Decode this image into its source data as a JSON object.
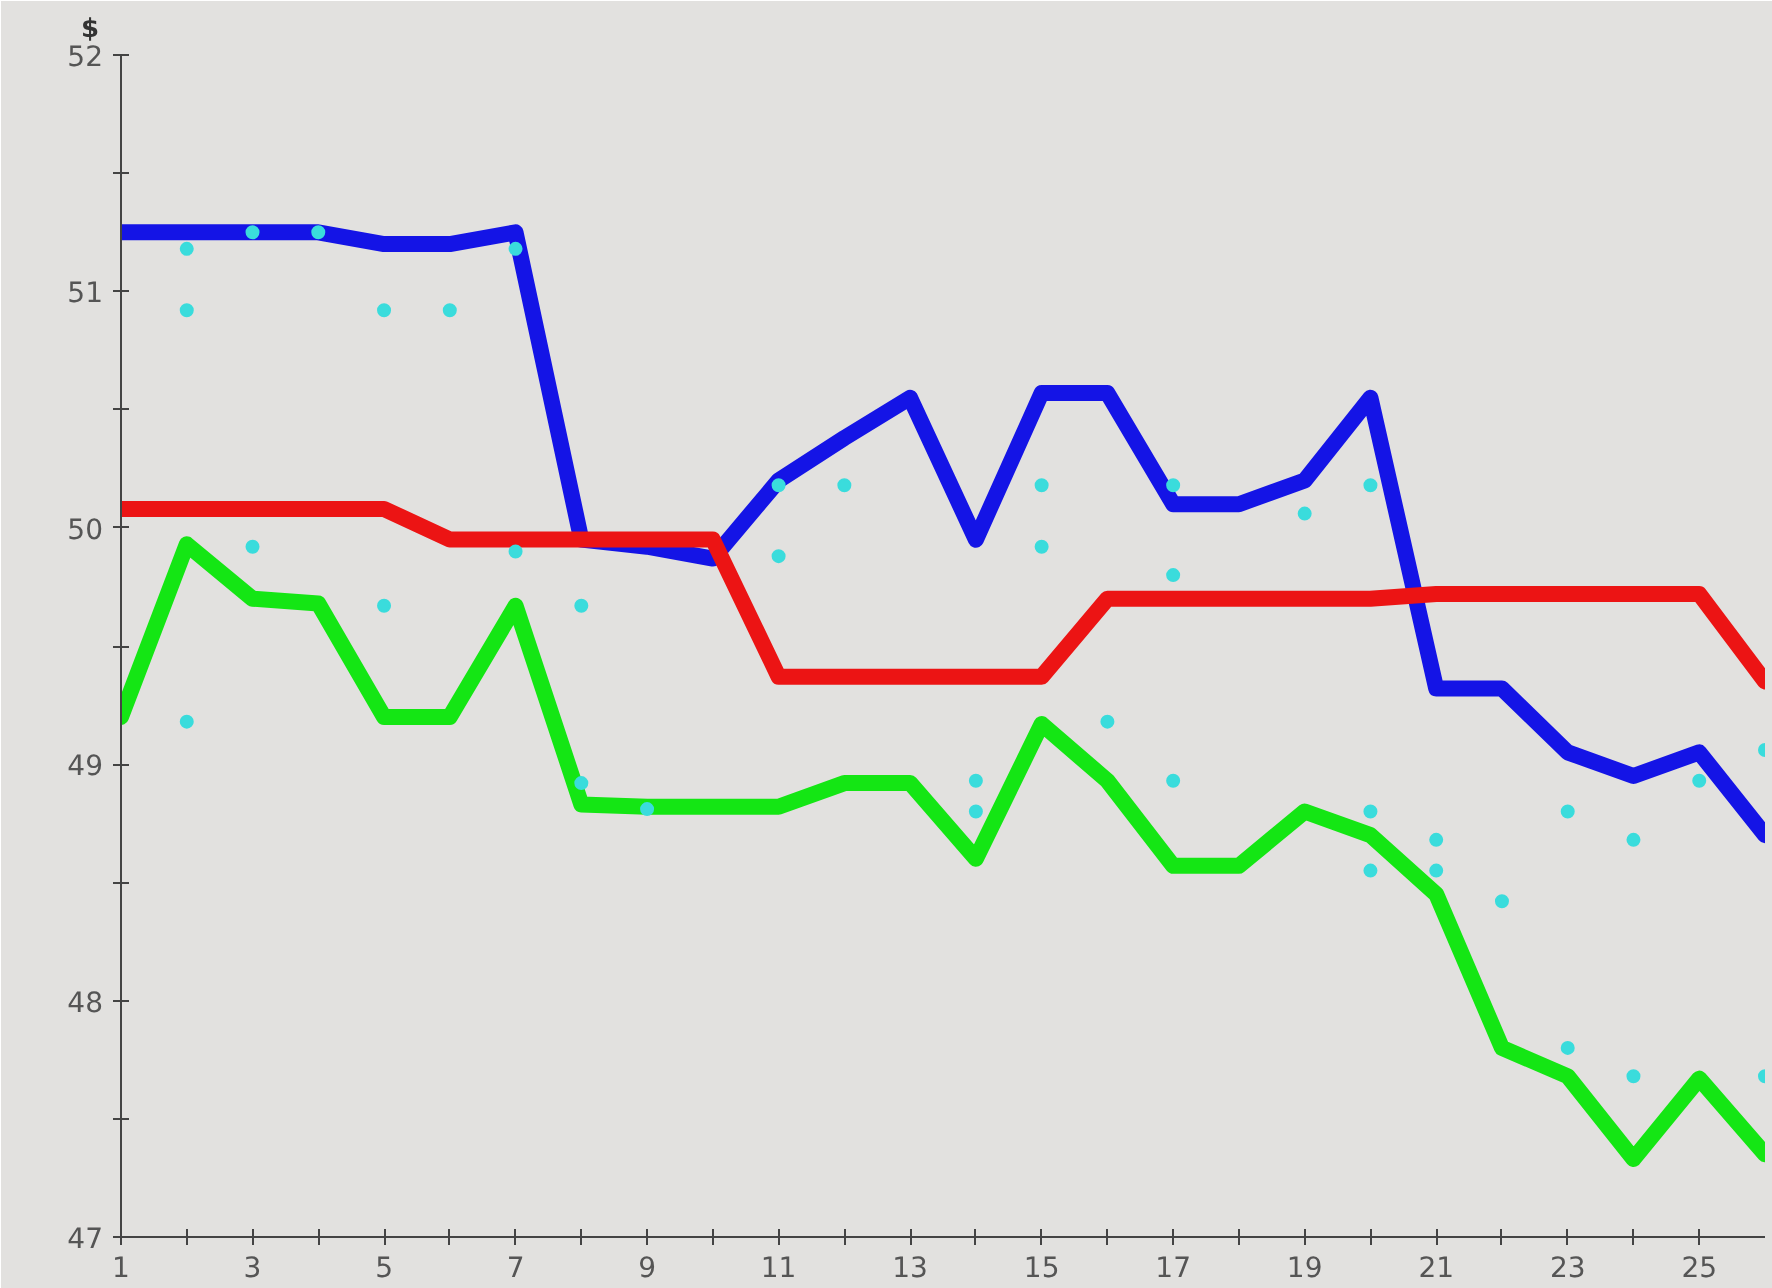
{
  "chart_data": {
    "type": "line",
    "ylabel": "$",
    "x": [
      1,
      2,
      3,
      4,
      5,
      6,
      7,
      8,
      9,
      10,
      11,
      12,
      13,
      14,
      15,
      16,
      17,
      18,
      19,
      20,
      21,
      22,
      23,
      24,
      25,
      26
    ],
    "series": [
      {
        "color": "#1414e6",
        "values": [
          51.25,
          51.25,
          51.25,
          51.25,
          51.2,
          51.2,
          51.25,
          49.95,
          49.92,
          49.87,
          50.2,
          50.38,
          50.55,
          49.95,
          50.57,
          50.57,
          50.1,
          50.1,
          50.2,
          50.55,
          49.32,
          49.32,
          49.05,
          48.95,
          49.05,
          48.7
        ]
      },
      {
        "color": "#ec1414",
        "values": [
          50.08,
          50.08,
          50.08,
          50.08,
          50.08,
          49.95,
          49.95,
          49.95,
          49.95,
          49.95,
          49.37,
          49.37,
          49.37,
          49.37,
          49.37,
          49.7,
          49.7,
          49.7,
          49.7,
          49.7,
          49.72,
          49.72,
          49.72,
          49.72,
          49.72,
          49.35
        ]
      },
      {
        "color": "#14e614",
        "values": [
          49.2,
          49.93,
          49.7,
          49.68,
          49.2,
          49.2,
          49.67,
          48.83,
          48.82,
          48.82,
          48.82,
          48.92,
          48.92,
          48.6,
          49.17,
          48.93,
          48.57,
          48.57,
          48.8,
          48.7,
          48.45,
          47.8,
          47.68,
          47.33,
          47.67,
          47.35
        ]
      },
      {
        "type": "scatter",
        "marker": "circle",
        "color": "#3adcdc",
        "x": [
          2,
          2,
          3,
          4,
          5,
          6,
          7,
          3,
          5,
          8,
          7,
          11,
          11,
          12,
          2,
          8,
          9,
          15,
          15,
          17,
          17,
          19,
          20,
          16,
          14,
          14,
          17,
          20,
          20,
          21,
          21,
          22,
          23,
          24,
          23,
          24,
          26,
          26,
          25
        ],
        "values": [
          51.18,
          50.92,
          51.25,
          51.25,
          50.92,
          50.92,
          51.18,
          49.92,
          49.67,
          49.67,
          49.9,
          50.18,
          49.88,
          50.18,
          49.18,
          48.92,
          48.81,
          50.18,
          49.92,
          49.8,
          50.18,
          50.06,
          50.18,
          49.18,
          48.93,
          48.8,
          48.93,
          48.8,
          48.55,
          48.68,
          48.55,
          48.42,
          48.8,
          48.68,
          47.8,
          47.68,
          47.68,
          49.06,
          48.93
        ]
      }
    ],
    "xlim": [
      1,
      26
    ],
    "ylim": [
      47,
      52
    ],
    "xticks": [
      1,
      {
        "value": 2,
        "label": null
      },
      3,
      {
        "value": 4,
        "label": null
      },
      5,
      {
        "value": 6,
        "label": null
      },
      7,
      {
        "value": 8,
        "label": null
      },
      9,
      {
        "value": 10,
        "label": null
      },
      11,
      {
        "value": 12,
        "label": null
      },
      13,
      {
        "value": 14,
        "label": null
      },
      15,
      {
        "value": 16,
        "label": null
      },
      17,
      {
        "value": 18,
        "label": null
      },
      19,
      {
        "value": 20,
        "label": null
      },
      21,
      {
        "value": 22,
        "label": null
      },
      23,
      {
        "value": 24,
        "label": null
      },
      25
    ],
    "yticks": [
      47,
      {
        "value": 47.5,
        "label": null
      },
      48,
      {
        "value": 48.5,
        "label": null
      },
      49,
      {
        "value": 49.5,
        "label": null
      },
      50,
      {
        "value": 50.5,
        "label": null
      },
      51,
      {
        "value": 51.5,
        "label": null
      },
      52
    ],
    "grid": false,
    "line_style": "solid"
  }
}
